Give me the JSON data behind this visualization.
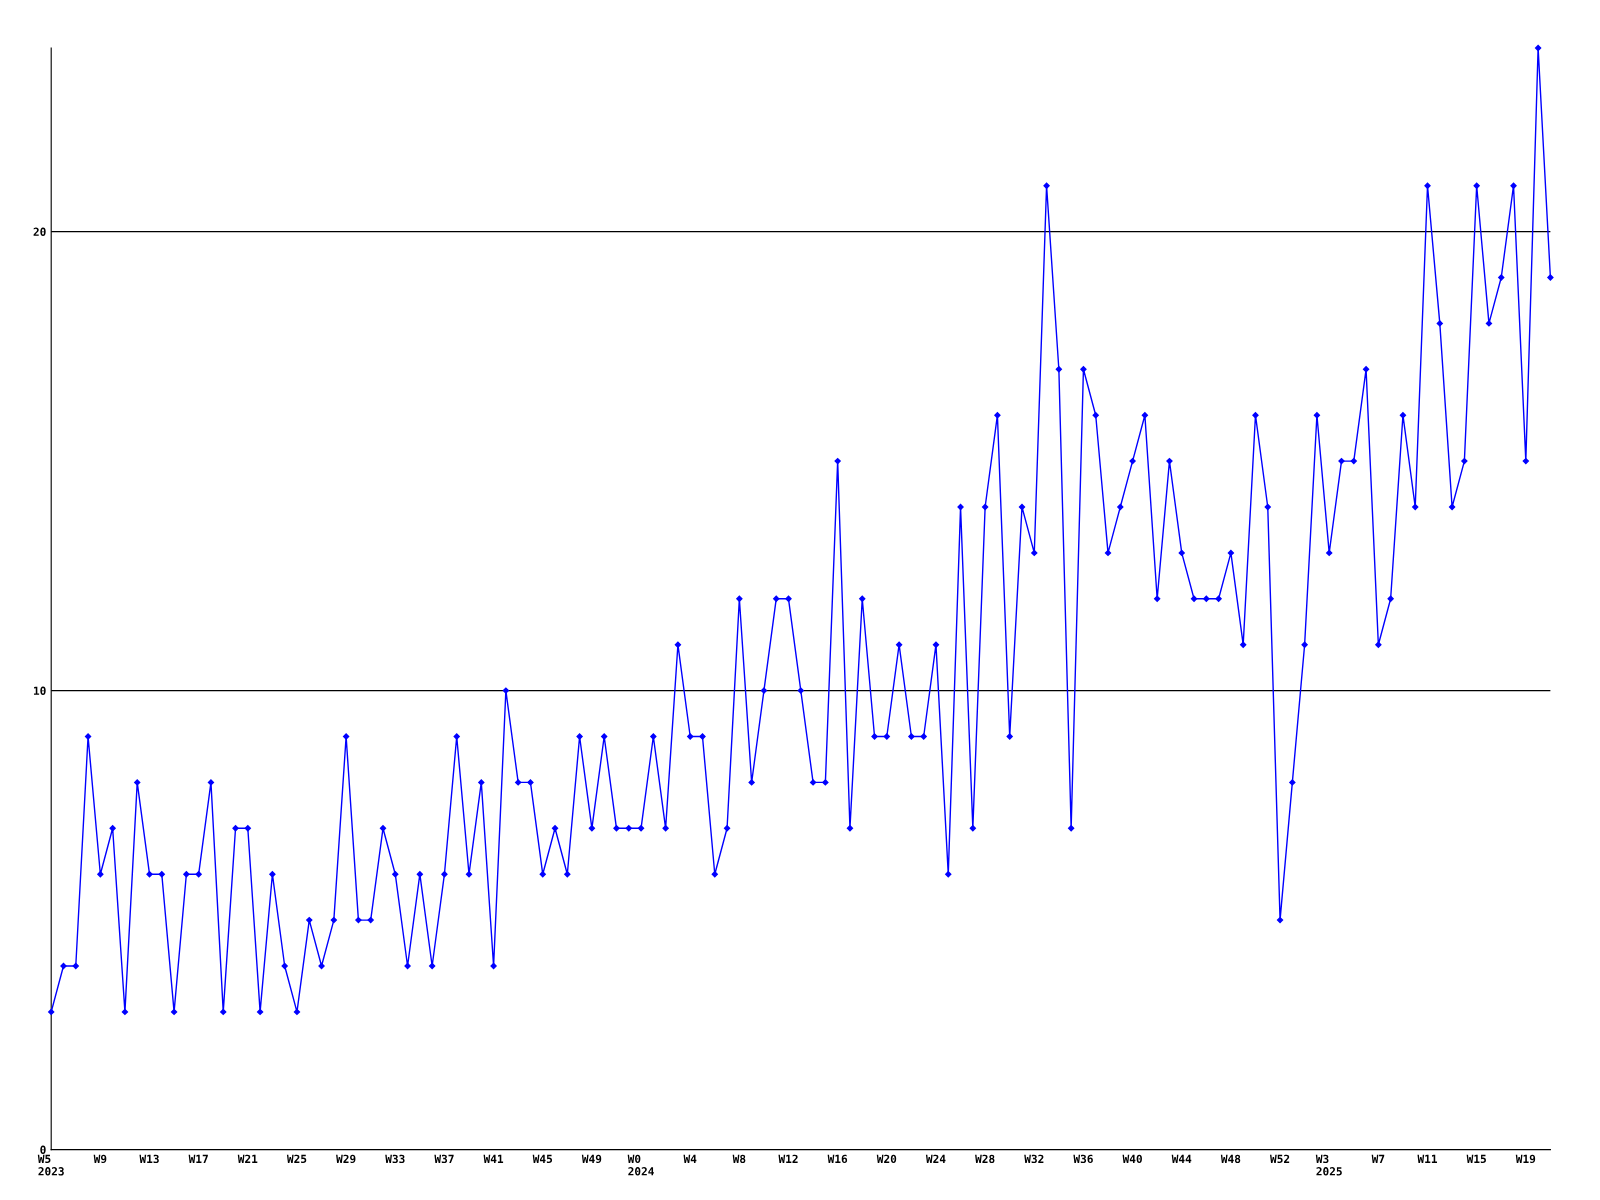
{
  "chart_data": {
    "type": "line",
    "categories": [
      "W5\n2023",
      null,
      null,
      null,
      "W9",
      null,
      null,
      null,
      "W13",
      null,
      null,
      null,
      "W17",
      null,
      null,
      null,
      "W21",
      null,
      null,
      null,
      "W25",
      null,
      null,
      null,
      "W29",
      null,
      null,
      null,
      "W33",
      null,
      null,
      null,
      "W37",
      null,
      null,
      null,
      "W41",
      null,
      null,
      null,
      "W45",
      null,
      null,
      null,
      "W49",
      null,
      null,
      null,
      "W0\n2024",
      null,
      null,
      null,
      "W4",
      null,
      null,
      null,
      "W8",
      null,
      null,
      null,
      "W12",
      null,
      null,
      null,
      "W16",
      null,
      null,
      null,
      "W20",
      null,
      null,
      null,
      "W24",
      null,
      null,
      null,
      "W28",
      null,
      null,
      null,
      "W32",
      null,
      null,
      null,
      "W36",
      null,
      null,
      null,
      "W40",
      null,
      null,
      null,
      "W44",
      null,
      null,
      null,
      "W48",
      null,
      null,
      null,
      "W52",
      null,
      null,
      null,
      "W3\n2025",
      null,
      null,
      null,
      "W7",
      null,
      null,
      null,
      "W11",
      null,
      null,
      null,
      "W15",
      null,
      null,
      null,
      "W19",
      null,
      null
    ],
    "series": [
      {
        "color": "#0000ff",
        "values": [
          3,
          4,
          4,
          9,
          6,
          7,
          3,
          8,
          6,
          6,
          3,
          6,
          6,
          8,
          3,
          7,
          7,
          3,
          6,
          4,
          3,
          5,
          4,
          5,
          9,
          5,
          5,
          7,
          6,
          4,
          6,
          4,
          6,
          9,
          6,
          8,
          4,
          10,
          8,
          8,
          6,
          7,
          6,
          9,
          7,
          9,
          7,
          7,
          7,
          9,
          7,
          11,
          9,
          9,
          6,
          7,
          12,
          8,
          10,
          12,
          12,
          10,
          8,
          8,
          15,
          7,
          12,
          9,
          9,
          11,
          9,
          9,
          11,
          6,
          14,
          7,
          14,
          16,
          9,
          14,
          13,
          21,
          17,
          7,
          17,
          16,
          13,
          14,
          15,
          16,
          12,
          15,
          13,
          12,
          12,
          12,
          13,
          11,
          16,
          14,
          5,
          8,
          11,
          16,
          13,
          15,
          15,
          17,
          11,
          12,
          16,
          14,
          21,
          18,
          14,
          15,
          21,
          18,
          19,
          21,
          15,
          24,
          19
        ]
      }
    ],
    "ylim": [
      0,
      24
    ],
    "yticks": [
      0,
      10,
      20
    ],
    "grid": "y",
    "marker": "diamond",
    "line_style": "solid"
  }
}
